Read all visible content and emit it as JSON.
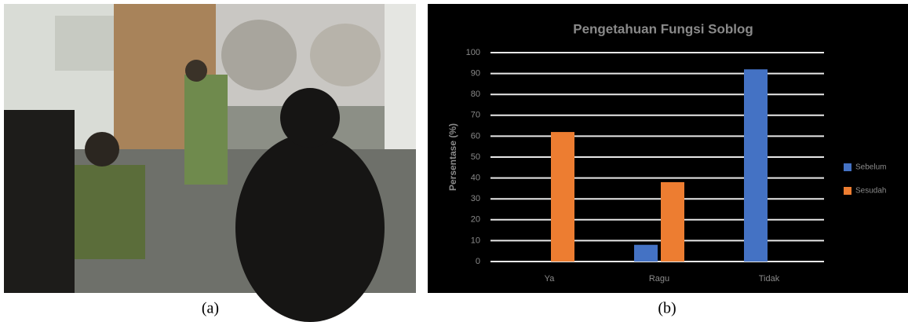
{
  "captions": [
    "(a)",
    "(b)"
  ],
  "chart_data": {
    "type": "bar",
    "title": "Pengetahuan Fungsi Soblog",
    "y_label": "Persentase (%)",
    "categories": [
      "Ya",
      "Ragu",
      "Tidak"
    ],
    "series": [
      {
        "name": "Sebelum",
        "color": "#4472c4",
        "values": [
          0,
          8,
          92
        ]
      },
      {
        "name": "Sesudah",
        "color": "#ed7d31",
        "values": [
          62,
          38,
          0
        ]
      }
    ],
    "ylim": [
      0,
      100
    ],
    "yticks": [
      0,
      10,
      20,
      30,
      40,
      50,
      60,
      70,
      80,
      90,
      100
    ],
    "grid": true,
    "legend": "right"
  }
}
